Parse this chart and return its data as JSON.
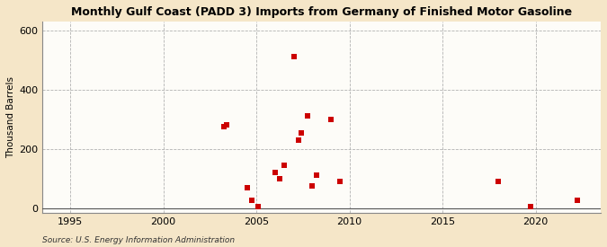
{
  "title": "Monthly Gulf Coast (PADD 3) Imports from Germany of Finished Motor Gasoline",
  "ylabel": "Thousand Barrels",
  "source": "Source: U.S. Energy Information Administration",
  "background_color": "#f5e6c8",
  "plot_background_color": "#fdfcf8",
  "marker_color": "#cc0000",
  "marker_size": 18,
  "xlim": [
    1993.5,
    2023.5
  ],
  "ylim": [
    -15,
    630
  ],
  "yticks": [
    0,
    200,
    400,
    600
  ],
  "xticks": [
    1995,
    2000,
    2005,
    2010,
    2015,
    2020
  ],
  "data_points": [
    [
      2003.25,
      275
    ],
    [
      2003.42,
      280
    ],
    [
      2004.5,
      70
    ],
    [
      2004.75,
      25
    ],
    [
      2005.08,
      5
    ],
    [
      2006.0,
      120
    ],
    [
      2006.25,
      100
    ],
    [
      2006.5,
      145
    ],
    [
      2007.0,
      510
    ],
    [
      2007.25,
      230
    ],
    [
      2007.42,
      255
    ],
    [
      2007.75,
      310
    ],
    [
      2008.0,
      75
    ],
    [
      2008.25,
      110
    ],
    [
      2009.0,
      300
    ],
    [
      2009.5,
      90
    ],
    [
      2018.0,
      90
    ],
    [
      2019.75,
      5
    ],
    [
      2022.25,
      25
    ]
  ]
}
